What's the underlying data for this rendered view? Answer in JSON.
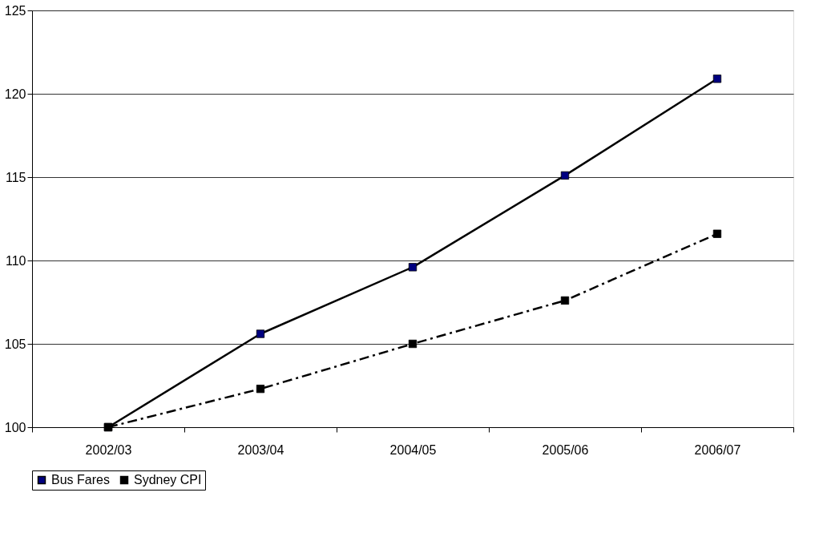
{
  "chart_data": {
    "type": "line",
    "categories": [
      "2002/03",
      "2003/04",
      "2004/05",
      "2005/06",
      "2006/07"
    ],
    "series": [
      {
        "name": "Bus Fares",
        "color": "#000080",
        "line_style": "solid",
        "values": [
          100,
          105.6,
          109.6,
          115.1,
          120.9
        ]
      },
      {
        "name": "Sydney CPI",
        "color": "#000000",
        "line_style": "dashed",
        "values": [
          100,
          102.3,
          105.0,
          107.6,
          111.6
        ]
      }
    ],
    "ylim": [
      100,
      125
    ],
    "yticks": [
      100,
      105,
      110,
      115,
      120,
      125
    ],
    "grid": "y",
    "legend": "bottom",
    "marker": "square"
  }
}
